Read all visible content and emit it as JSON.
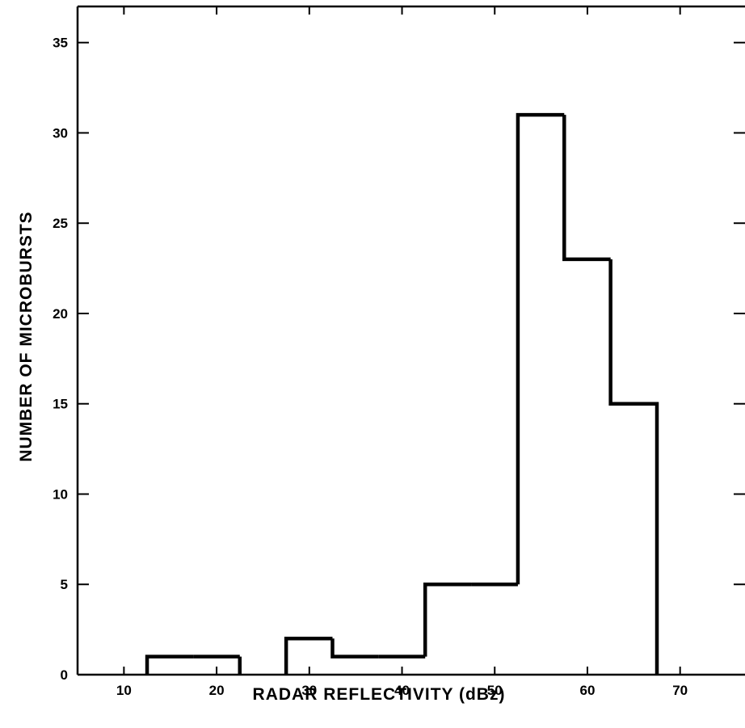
{
  "chart_data": {
    "type": "histogram",
    "xlabel": "RADAR REFLECTIVITY (dBz)",
    "ylabel": "NUMBER OF MICROBURSTS",
    "xlim": [
      5,
      77
    ],
    "ylim": [
      0,
      37
    ],
    "xticks": [
      10,
      20,
      30,
      40,
      50,
      60,
      70
    ],
    "yticks": [
      0,
      5,
      10,
      15,
      20,
      25,
      30,
      35
    ],
    "bins": [
      {
        "start": 12.5,
        "end": 17.5,
        "value": 1
      },
      {
        "start": 17.5,
        "end": 22.5,
        "value": 1
      },
      {
        "start": 22.5,
        "end": 27.5,
        "value": 0
      },
      {
        "start": 27.5,
        "end": 32.5,
        "value": 2
      },
      {
        "start": 32.5,
        "end": 37.5,
        "value": 1
      },
      {
        "start": 37.5,
        "end": 42.5,
        "value": 1
      },
      {
        "start": 42.5,
        "end": 47.5,
        "value": 5
      },
      {
        "start": 47.5,
        "end": 52.5,
        "value": 5
      },
      {
        "start": 52.5,
        "end": 57.5,
        "value": 31
      },
      {
        "start": 57.5,
        "end": 62.5,
        "value": 23
      },
      {
        "start": 62.5,
        "end": 67.5,
        "value": 15
      }
    ],
    "grid": false,
    "line_color": "#000000"
  }
}
